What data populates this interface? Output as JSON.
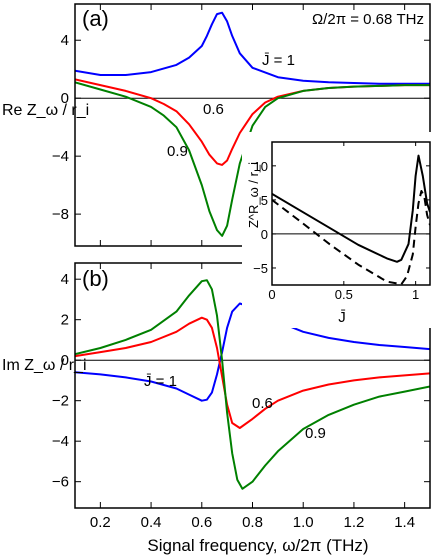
{
  "chart_data": [
    {
      "type": "line",
      "panel_label": "(a)",
      "annotation": "Ω/2π = 0.68 THz",
      "ylabel": "Re Z_ω / r_i",
      "xlim": [
        0.1,
        1.5
      ],
      "ylim": [
        -10.2,
        6.5
      ],
      "xticks": [
        0.2,
        0.4,
        0.6,
        0.8,
        1.0,
        1.2,
        1.4
      ],
      "yticks": [
        4,
        0,
        -4,
        -8
      ],
      "ytick_labels": [
        "4",
        "0",
        "-4",
        "-8"
      ],
      "zero_line": true,
      "series": [
        {
          "name": "J̄ = 1",
          "color": "#0000ff",
          "x": [
            0.1,
            0.2,
            0.3,
            0.4,
            0.5,
            0.55,
            0.6,
            0.62,
            0.64,
            0.66,
            0.68,
            0.7,
            0.72,
            0.75,
            0.8,
            0.9,
            1.0,
            1.1,
            1.2,
            1.3,
            1.4,
            1.5
          ],
          "y": [
            1.9,
            1.6,
            1.6,
            1.8,
            2.3,
            2.8,
            3.6,
            4.3,
            5.1,
            5.8,
            5.9,
            5.3,
            4.3,
            3.1,
            2.1,
            1.45,
            1.2,
            1.1,
            1.05,
            1.0,
            1.0,
            1.0
          ]
        },
        {
          "name": "0.6",
          "color": "#ff0000",
          "x": [
            0.1,
            0.2,
            0.3,
            0.4,
            0.45,
            0.5,
            0.55,
            0.6,
            0.63,
            0.66,
            0.68,
            0.7,
            0.72,
            0.75,
            0.8,
            0.85,
            0.9,
            1.0,
            1.1,
            1.2,
            1.3,
            1.4,
            1.5
          ],
          "y": [
            1.3,
            0.9,
            0.5,
            0.0,
            -0.4,
            -0.9,
            -1.8,
            -3.0,
            -3.9,
            -4.5,
            -4.6,
            -4.3,
            -3.5,
            -2.4,
            -1.1,
            -0.3,
            0.1,
            0.5,
            0.7,
            0.8,
            0.85,
            0.9,
            0.9
          ]
        },
        {
          "name": "0.9",
          "color": "#008000",
          "x": [
            0.1,
            0.2,
            0.3,
            0.4,
            0.45,
            0.5,
            0.55,
            0.6,
            0.63,
            0.66,
            0.68,
            0.7,
            0.72,
            0.75,
            0.8,
            0.85,
            0.9,
            1.0,
            1.1,
            1.2,
            1.3,
            1.4,
            1.5
          ],
          "y": [
            1.1,
            0.6,
            0.1,
            -0.6,
            -1.2,
            -2.0,
            -3.6,
            -6.0,
            -7.8,
            -9.1,
            -9.5,
            -8.8,
            -7.0,
            -4.5,
            -1.9,
            -0.6,
            0.0,
            0.5,
            0.7,
            0.8,
            0.85,
            0.9,
            0.9
          ]
        }
      ],
      "labels": [
        {
          "text": "J̄ = 1",
          "series": "J̄ = 1"
        },
        {
          "text": "0.6",
          "series": "0.6"
        },
        {
          "text": "0.9",
          "series": "0.9"
        }
      ]
    },
    {
      "type": "line",
      "panel_label": "(b)",
      "ylabel": "Im Z_ω / r_i",
      "xlabel": "Signal frequency, ω/2π (THz)",
      "xlim": [
        0.1,
        1.5
      ],
      "ylim": [
        -7.3,
        4.8
      ],
      "xticks": [
        0.2,
        0.4,
        0.6,
        0.8,
        1.0,
        1.2,
        1.4
      ],
      "xtick_labels": [
        "0.2",
        "0.4",
        "0.6",
        "0.8",
        "1.0",
        "1.2",
        "1.4"
      ],
      "yticks": [
        4,
        2,
        0,
        -2,
        -4,
        -6
      ],
      "ytick_labels": [
        "4",
        "2",
        "0",
        "-2",
        "-4",
        "-6"
      ],
      "zero_line": true,
      "series": [
        {
          "name": "J̄ = 1",
          "color": "#0000ff",
          "x": [
            0.1,
            0.2,
            0.3,
            0.4,
            0.5,
            0.55,
            0.6,
            0.62,
            0.64,
            0.66,
            0.68,
            0.7,
            0.72,
            0.75,
            0.8,
            0.9,
            1.0,
            1.1,
            1.2,
            1.3,
            1.4,
            1.5
          ],
          "y": [
            -0.6,
            -0.7,
            -0.85,
            -1.05,
            -1.4,
            -1.7,
            -2.0,
            -1.95,
            -1.6,
            -0.7,
            0.4,
            1.6,
            2.4,
            2.8,
            2.6,
            1.9,
            1.4,
            1.1,
            0.9,
            0.75,
            0.65,
            0.55
          ]
        },
        {
          "name": "0.6",
          "color": "#ff0000",
          "x": [
            0.1,
            0.2,
            0.3,
            0.4,
            0.5,
            0.55,
            0.6,
            0.62,
            0.64,
            0.66,
            0.68,
            0.7,
            0.72,
            0.75,
            0.8,
            0.85,
            0.9,
            1.0,
            1.1,
            1.2,
            1.3,
            1.4,
            1.5
          ],
          "y": [
            0.2,
            0.4,
            0.6,
            0.9,
            1.4,
            1.8,
            2.1,
            2.0,
            1.6,
            0.6,
            -0.8,
            -2.2,
            -3.1,
            -3.35,
            -2.9,
            -2.4,
            -2.0,
            -1.5,
            -1.2,
            -1.0,
            -0.85,
            -0.75,
            -0.65
          ]
        },
        {
          "name": "0.9",
          "color": "#008000",
          "x": [
            0.1,
            0.2,
            0.3,
            0.4,
            0.5,
            0.55,
            0.6,
            0.62,
            0.64,
            0.66,
            0.68,
            0.7,
            0.72,
            0.74,
            0.76,
            0.8,
            0.85,
            0.9,
            1.0,
            1.1,
            1.2,
            1.3,
            1.4,
            1.5
          ],
          "y": [
            0.3,
            0.6,
            1.0,
            1.5,
            2.4,
            3.2,
            3.9,
            3.95,
            3.5,
            2.2,
            0.0,
            -2.6,
            -4.6,
            -5.9,
            -6.35,
            -6.0,
            -5.2,
            -4.5,
            -3.4,
            -2.7,
            -2.2,
            -1.8,
            -1.55,
            -1.3
          ]
        }
      ],
      "labels": [
        {
          "text": "J̄ = 1",
          "series": "J̄ = 1"
        },
        {
          "text": "0.6",
          "series": "0.6"
        },
        {
          "text": "0.9",
          "series": "0.9"
        }
      ]
    },
    {
      "type": "line",
      "inset": true,
      "ylabel": "Z^R_ω / r_i",
      "xlabel": "J̄",
      "xlim": [
        0,
        1.1
      ],
      "ylim": [
        -7.5,
        13.5
      ],
      "xticks": [
        0,
        0.5,
        1
      ],
      "xtick_labels": [
        "0",
        "0.5",
        "1"
      ],
      "yticks": [
        10,
        5,
        0,
        -5
      ],
      "ytick_labels": [
        "10",
        "5",
        "0",
        "-5"
      ],
      "zero_line": true,
      "series": [
        {
          "style": "solid",
          "color": "#000000",
          "x": [
            0,
            0.2,
            0.4,
            0.6,
            0.8,
            0.87,
            0.9,
            0.95,
            0.98,
            1.0,
            1.02,
            1.05,
            1.08,
            1.1
          ],
          "y": [
            5.9,
            3.4,
            0.9,
            -1.6,
            -3.6,
            -4.1,
            -3.8,
            -1.5,
            3.5,
            8.5,
            11.5,
            8.5,
            4.5,
            3.2
          ]
        },
        {
          "style": "dashed",
          "color": "#000000",
          "x": [
            0,
            0.2,
            0.4,
            0.6,
            0.8,
            0.9,
            0.94,
            0.98,
            1.0,
            1.02,
            1.04,
            1.06,
            1.08,
            1.1
          ],
          "y": [
            5.0,
            1.8,
            -1.5,
            -4.5,
            -7.0,
            -7.4,
            -6.2,
            -3.0,
            1.0,
            4.5,
            6.3,
            5.5,
            2.8,
            1.3
          ]
        }
      ]
    }
  ]
}
